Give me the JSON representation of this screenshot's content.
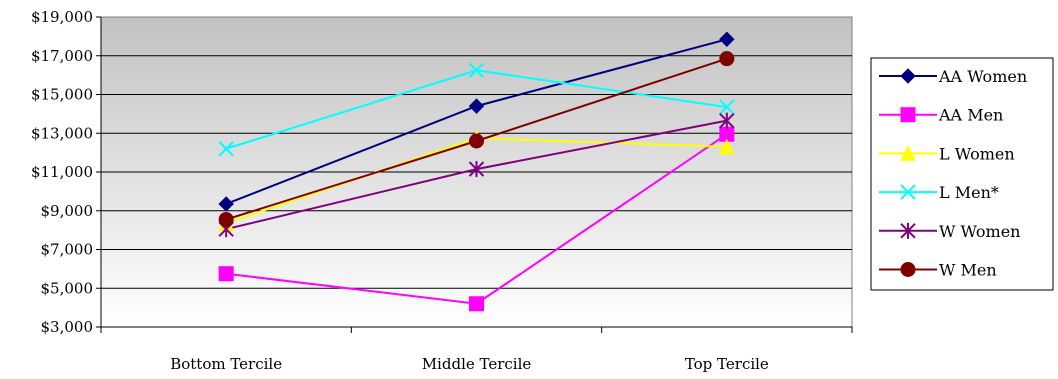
{
  "chart_data": {
    "type": "line",
    "title": "",
    "xlabel": "",
    "ylabel": "",
    "categories": [
      "Bottom Tercile",
      "Middle Tercile",
      "Top Tercile"
    ],
    "ylim": [
      3000,
      19000
    ],
    "y_ticks": [
      3000,
      5000,
      7000,
      9000,
      11000,
      13000,
      15000,
      17000,
      19000
    ],
    "y_tick_labels": [
      "$3,000",
      "$5,000",
      "$7,000",
      "$9,000",
      "$11,000",
      "$13,000",
      "$15,000",
      "$17,000",
      "$19,000"
    ],
    "grid": true,
    "legend_position": "right",
    "series": [
      {
        "name": "AA Women",
        "values": [
          9350,
          14400,
          17850
        ],
        "color": "#000080",
        "marker": "diamond"
      },
      {
        "name": "AA Men",
        "values": [
          5750,
          4200,
          12950
        ],
        "color": "#ff00ff",
        "marker": "square"
      },
      {
        "name": "L Women",
        "values": [
          8350,
          12750,
          12300
        ],
        "color": "#ffff00",
        "marker": "triangle"
      },
      {
        "name": "L Men*",
        "values": [
          12200,
          16250,
          14350
        ],
        "color": "#00ffff",
        "marker": "x"
      },
      {
        "name": "W Women",
        "values": [
          8050,
          11150,
          13650
        ],
        "color": "#800080",
        "marker": "star"
      },
      {
        "name": "W Men",
        "values": [
          8550,
          12600,
          16850
        ],
        "color": "#800000",
        "marker": "circle"
      }
    ]
  }
}
